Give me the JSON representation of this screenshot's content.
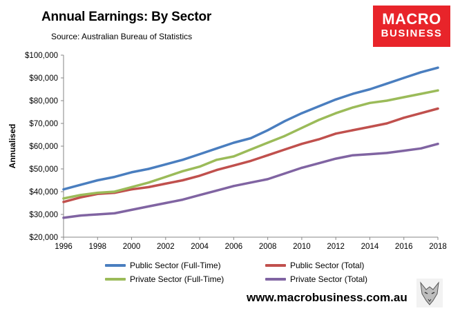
{
  "header": {
    "title": "Annual Earnings: By Sector",
    "source": "Source: Australian Bureau of Statistics"
  },
  "logo": {
    "line1": "MACRO",
    "line2": "BUSINESS"
  },
  "footer": {
    "website": "www.macrobusiness.com.au"
  },
  "colors": {
    "public_full_time": "#4a7ebf",
    "public_total": "#c0504d",
    "private_full_time": "#9bbb59",
    "private_total": "#8064a2",
    "brand": "#e8242a"
  },
  "chart_data": {
    "type": "line",
    "title": "Annual Earnings: By Sector",
    "xlabel": "",
    "ylabel": "Annualised",
    "xlim": [
      1996,
      2018
    ],
    "ylim": [
      20000,
      100000
    ],
    "x_ticks": [
      1996,
      1998,
      2000,
      2002,
      2004,
      2006,
      2008,
      2010,
      2012,
      2014,
      2016,
      2018
    ],
    "x_tick_labels": [
      "1996",
      "1998",
      "2000",
      "2002",
      "2004",
      "2006",
      "2008",
      "2010",
      "2012",
      "2014",
      "2016",
      "2018"
    ],
    "y_ticks": [
      20000,
      30000,
      40000,
      50000,
      60000,
      70000,
      80000,
      90000,
      100000
    ],
    "y_tick_labels": [
      "$20,000",
      "$30,000",
      "$40,000",
      "$50,000",
      "$60,000",
      "$70,000",
      "$80,000",
      "$90,000",
      "$100,000"
    ],
    "grid": false,
    "legend": "bottom",
    "x": [
      1996,
      1997,
      1998,
      1999,
      2000,
      2001,
      2002,
      2003,
      2004,
      2005,
      2006,
      2007,
      2008,
      2009,
      2010,
      2011,
      2012,
      2013,
      2014,
      2015,
      2016,
      2017,
      2018
    ],
    "series": [
      {
        "name": "Public Sector (Full-Time)",
        "color_key": "public_full_time",
        "values": [
          41000,
          43000,
          45000,
          46500,
          48500,
          50000,
          52000,
          54000,
          56500,
          59000,
          61500,
          63500,
          67000,
          71000,
          74500,
          77500,
          80500,
          83000,
          85000,
          87500,
          90000,
          92500,
          94500
        ]
      },
      {
        "name": "Public Sector (Total)",
        "color_key": "public_total",
        "values": [
          35500,
          37500,
          39000,
          39500,
          41000,
          42000,
          43500,
          45000,
          47000,
          49500,
          51500,
          53500,
          56000,
          58500,
          61000,
          63000,
          65500,
          67000,
          68500,
          70000,
          72500,
          74500,
          76500
        ]
      },
      {
        "name": "Private Sector (Full-Time)",
        "color_key": "private_full_time",
        "values": [
          37000,
          38500,
          39500,
          40000,
          42000,
          44000,
          46500,
          49000,
          51000,
          54000,
          55500,
          58500,
          61500,
          64500,
          68000,
          71500,
          74500,
          77000,
          79000,
          80000,
          81500,
          83000,
          84500
        ]
      },
      {
        "name": "Private Sector (Total)",
        "color_key": "private_total",
        "values": [
          28500,
          29500,
          30000,
          30500,
          32000,
          33500,
          35000,
          36500,
          38500,
          40500,
          42500,
          44000,
          45500,
          48000,
          50500,
          52500,
          54500,
          56000,
          56500,
          57000,
          58000,
          59000,
          61000
        ]
      }
    ]
  }
}
